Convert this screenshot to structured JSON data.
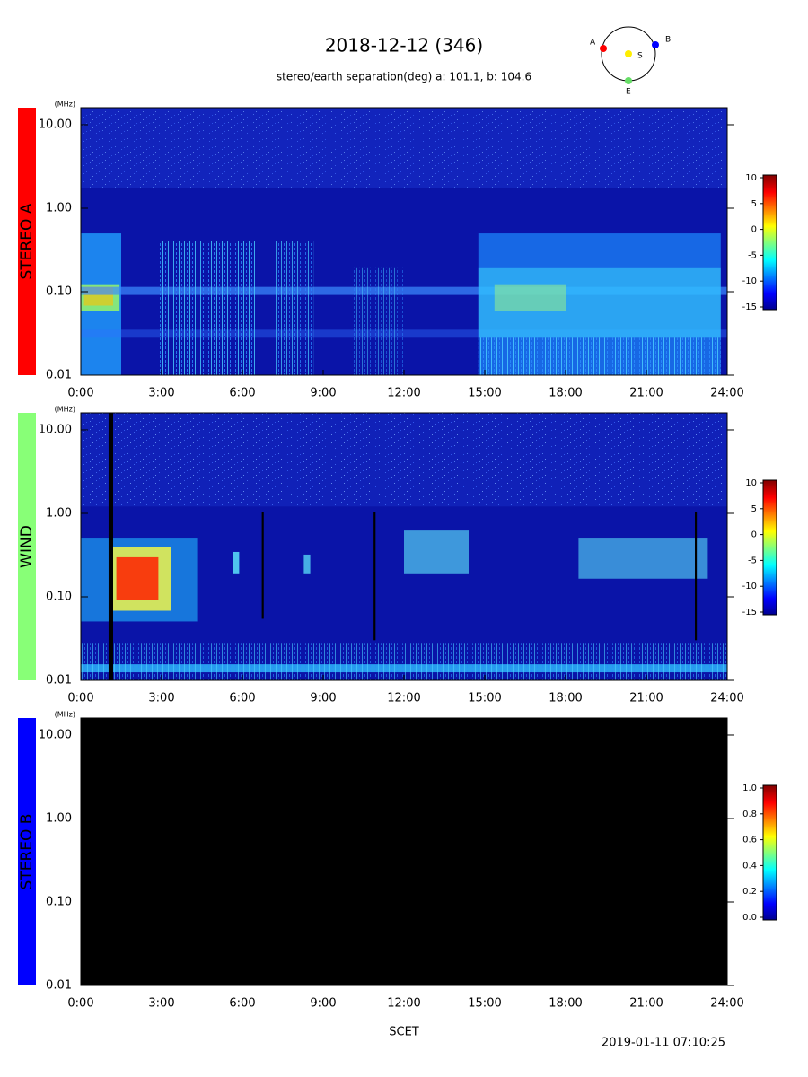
{
  "header": {
    "title": "2018-12-12 (346)",
    "subtitle": "stereo/earth separation(deg) a: 101.1, b: 104.6",
    "orbit": {
      "labels": [
        {
          "text": "A",
          "color": "#ff0000"
        },
        {
          "text": "B",
          "color": "#0000ff"
        },
        {
          "text": "S",
          "color": "#ffff00"
        },
        {
          "text": "E",
          "color": "#66dd66"
        }
      ]
    }
  },
  "x_label": "SCET",
  "timestamp": "2019-01-11 07:10:25",
  "chart_data": [
    {
      "type": "spectrogram",
      "panel_label": "STEREO A",
      "label_color": "#ff0000",
      "background": "#0a14a8",
      "y_unit": "(MHz)",
      "log_y": true,
      "xlim": [
        0,
        24
      ],
      "xticks": [
        {
          "value": 0,
          "label": "0:00"
        },
        {
          "value": 3,
          "label": "3:00"
        },
        {
          "value": 6,
          "label": "6:00"
        },
        {
          "value": 9,
          "label": "9:00"
        },
        {
          "value": 12,
          "label": "12:00"
        },
        {
          "value": 15,
          "label": "15:00"
        },
        {
          "value": 18,
          "label": "18:00"
        },
        {
          "value": 21,
          "label": "21:00"
        },
        {
          "value": 24,
          "label": "24:00"
        }
      ],
      "ylim": [
        0.01,
        16
      ],
      "yticks": [
        {
          "value": 0.01,
          "label": "0.01"
        },
        {
          "value": 0.1,
          "label": "0.10"
        },
        {
          "value": 1,
          "label": "1.00"
        },
        {
          "value": 10,
          "label": "10.00"
        }
      ],
      "zlim": [
        -15,
        10
      ],
      "zticks": [
        10,
        5,
        0,
        -5,
        -10,
        -15
      ]
    },
    {
      "type": "spectrogram",
      "panel_label": "WIND",
      "label_color": "#88ff77",
      "background": "#0a14a8",
      "y_unit": "(MHz)",
      "log_y": true,
      "xlim": [
        0,
        24
      ],
      "xticks": [
        {
          "value": 0,
          "label": "0:00"
        },
        {
          "value": 3,
          "label": "3:00"
        },
        {
          "value": 6,
          "label": "6:00"
        },
        {
          "value": 9,
          "label": "9:00"
        },
        {
          "value": 12,
          "label": "12:00"
        },
        {
          "value": 15,
          "label": "15:00"
        },
        {
          "value": 18,
          "label": "18:00"
        },
        {
          "value": 21,
          "label": "21:00"
        },
        {
          "value": 24,
          "label": "24:00"
        }
      ],
      "ylim": [
        0.01,
        16
      ],
      "yticks": [
        {
          "value": 0.01,
          "label": "0.01"
        },
        {
          "value": 0.1,
          "label": "0.10"
        },
        {
          "value": 1,
          "label": "1.00"
        },
        {
          "value": 10,
          "label": "10.00"
        }
      ],
      "zlim": [
        -15,
        10
      ],
      "zticks": [
        10,
        5,
        0,
        -5,
        -10,
        -15
      ]
    },
    {
      "type": "spectrogram",
      "panel_label": "STEREO B",
      "label_color": "#0000ff",
      "background": "#000000",
      "y_unit": "(MHz)",
      "log_y": true,
      "xlim": [
        0,
        24
      ],
      "xticks": [
        {
          "value": 0,
          "label": "0:00"
        },
        {
          "value": 3,
          "label": "3:00"
        },
        {
          "value": 6,
          "label": "6:00"
        },
        {
          "value": 9,
          "label": "9:00"
        },
        {
          "value": 12,
          "label": "12:00"
        },
        {
          "value": 15,
          "label": "15:00"
        },
        {
          "value": 18,
          "label": "18:00"
        },
        {
          "value": 21,
          "label": "21:00"
        },
        {
          "value": 24,
          "label": "24:00"
        }
      ],
      "ylim": [
        0.01,
        16
      ],
      "yticks": [
        {
          "value": 0.01,
          "label": "0.01"
        },
        {
          "value": 0.1,
          "label": "0.10"
        },
        {
          "value": 1,
          "label": "1.00"
        },
        {
          "value": 10,
          "label": "10.00"
        }
      ],
      "zlim": [
        0,
        1
      ],
      "zticks": [
        {
          "value": 1,
          "label": "1.0"
        },
        {
          "value": 0.8,
          "label": "0.8"
        },
        {
          "value": 0.6,
          "label": "0.6"
        },
        {
          "value": 0.4,
          "label": "0.4"
        },
        {
          "value": 0.2,
          "label": "0.2"
        },
        {
          "value": 0,
          "label": "0.0"
        }
      ]
    }
  ]
}
